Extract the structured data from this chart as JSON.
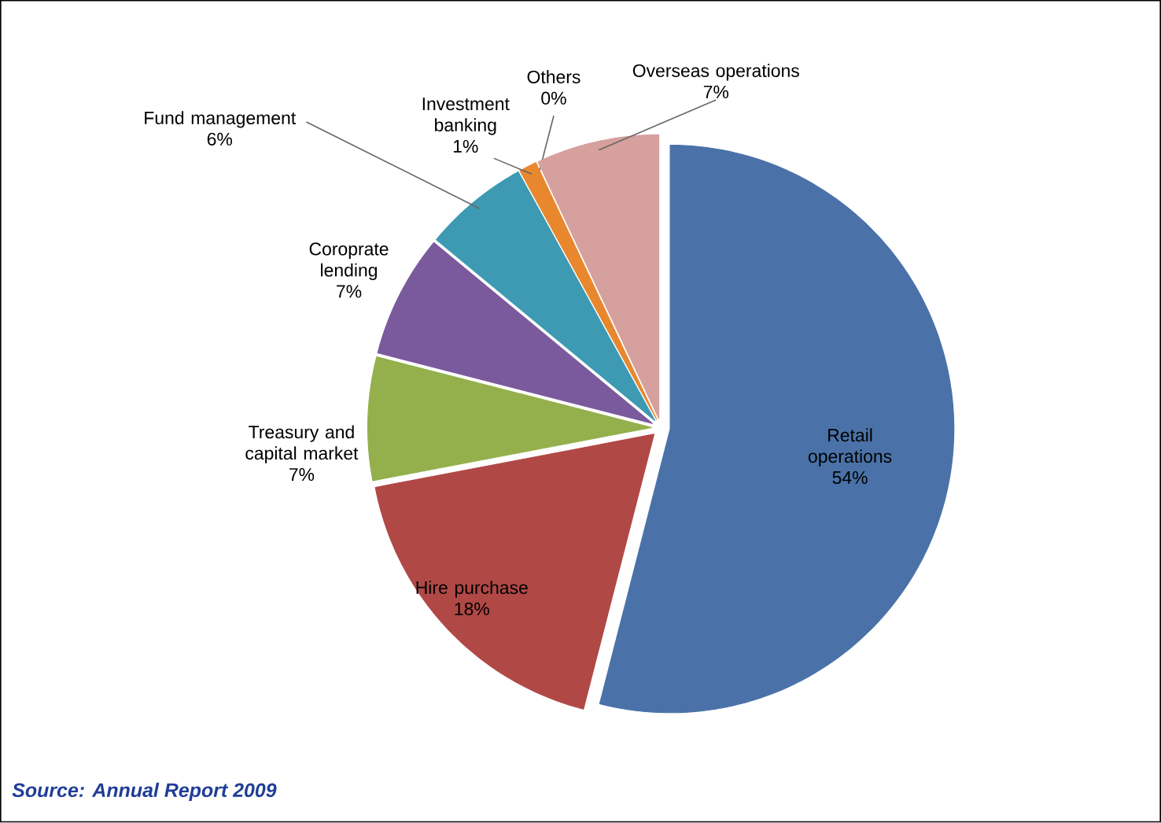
{
  "chart_data": {
    "type": "pie",
    "categories": [
      "Retail operations",
      "Hire purchase",
      "Treasury and capital market",
      "Coroprate lending",
      "Fund management",
      "Investment banking",
      "Others",
      "Overseas operations"
    ],
    "values": [
      54,
      18,
      7,
      7,
      6,
      1,
      0,
      7
    ],
    "value_labels": [
      "54%",
      "18%",
      "7%",
      "7%",
      "6%",
      "1%",
      "0%",
      "7%"
    ],
    "colors": [
      "#4a72a8",
      "#b04846",
      "#93b04c",
      "#7a5a9c",
      "#3d9ab2",
      "#e8872e",
      "#9db8dc",
      "#d6a09e"
    ],
    "annotations": [
      "Source: Annual Report 2009"
    ]
  }
}
